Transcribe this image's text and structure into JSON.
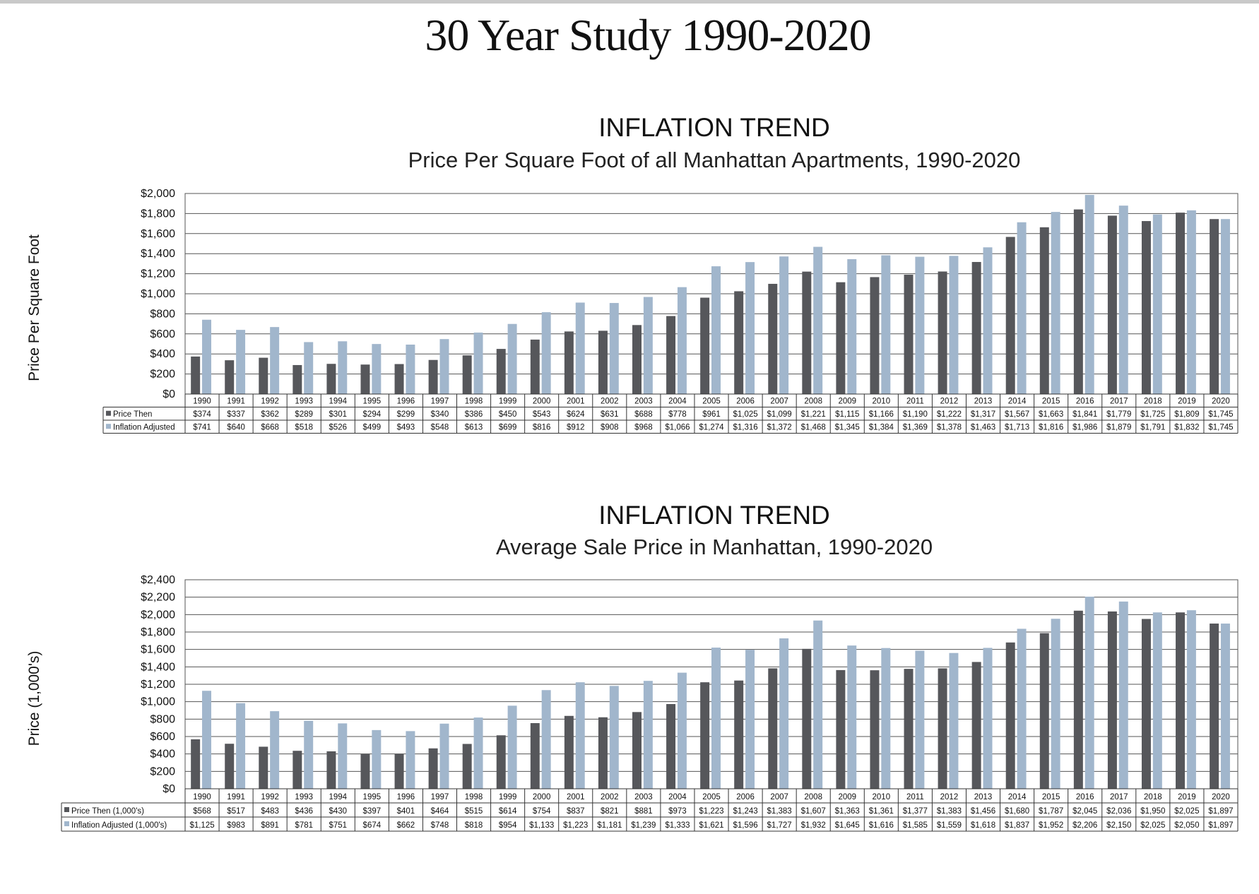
{
  "page": {
    "title": "30 Year Study 1990-2020"
  },
  "colors": {
    "price_then": "#56575b",
    "inflation_adjusted": "#a1b6cc",
    "grid": "#555555"
  },
  "chart_data": [
    {
      "type": "bar",
      "title": "INFLATION TREND",
      "subtitle": "Price Per Square Foot of all Manhattan Apartments, 1990-2020",
      "xlabel": "",
      "ylabel": "Price Per Square Foot",
      "ylim": [
        0,
        2000
      ],
      "yticks": [
        0,
        200,
        400,
        600,
        800,
        1000,
        1200,
        1400,
        1600,
        1800,
        2000
      ],
      "ytick_labels": [
        "$0",
        "$200",
        "$400",
        "$600",
        "$800",
        "$1,000",
        "$1,200",
        "$1,400",
        "$1,600",
        "$1,800",
        "$2,000"
      ],
      "grid": true,
      "legend": "data-table-left",
      "categories": [
        "1990",
        "1991",
        "1992",
        "1993",
        "1994",
        "1995",
        "1996",
        "1997",
        "1998",
        "1999",
        "2000",
        "2001",
        "2002",
        "2003",
        "2004",
        "2005",
        "2006",
        "2007",
        "2008",
        "2009",
        "2010",
        "2011",
        "2012",
        "2013",
        "2014",
        "2015",
        "2016",
        "2017",
        "2018",
        "2019",
        "2020"
      ],
      "series": [
        {
          "name": "Price Then",
          "values": [
            374,
            337,
            362,
            289,
            301,
            294,
            299,
            340,
            386,
            450,
            543,
            624,
            631,
            688,
            778,
            961,
            1025,
            1099,
            1221,
            1115,
            1166,
            1190,
            1222,
            1317,
            1567,
            1663,
            1841,
            1779,
            1725,
            1809,
            1745
          ],
          "labels": [
            "$374",
            "$337",
            "$362",
            "$289",
            "$301",
            "$294",
            "$299",
            "$340",
            "$386",
            "$450",
            "$543",
            "$624",
            "$631",
            "$688",
            "$778",
            "$961",
            "$1,025",
            "$1,099",
            "$1,221",
            "$1,115",
            "$1,166",
            "$1,190",
            "$1,222",
            "$1,317",
            "$1,567",
            "$1,663",
            "$1,841",
            "$1,779",
            "$1,725",
            "$1,809",
            "$1,745"
          ]
        },
        {
          "name": "Inflation Adjusted",
          "values": [
            741,
            640,
            668,
            518,
            526,
            499,
            493,
            548,
            613,
            699,
            816,
            912,
            908,
            968,
            1066,
            1274,
            1316,
            1372,
            1468,
            1345,
            1384,
            1369,
            1378,
            1463,
            1713,
            1816,
            1986,
            1879,
            1791,
            1832,
            1745
          ],
          "labels": [
            "$741",
            "$640",
            "$668",
            "$518",
            "$526",
            "$499",
            "$493",
            "$548",
            "$613",
            "$699",
            "$816",
            "$912",
            "$908",
            "$968",
            "$1,066",
            "$1,274",
            "$1,316",
            "$1,372",
            "$1,468",
            "$1,345",
            "$1,384",
            "$1,369",
            "$1,378",
            "$1,463",
            "$1,713",
            "$1,816",
            "$1,986",
            "$1,879",
            "$1,791",
            "$1,832",
            "$1,745"
          ]
        }
      ]
    },
    {
      "type": "bar",
      "title": "INFLATION TREND",
      "subtitle": "Average Sale Price in Manhattan, 1990-2020",
      "xlabel": "",
      "ylabel": "Price (1,000's)",
      "ylim": [
        0,
        2400
      ],
      "yticks": [
        0,
        200,
        400,
        600,
        800,
        1000,
        1200,
        1400,
        1600,
        1800,
        2000,
        2200,
        2400
      ],
      "ytick_labels": [
        "$0",
        "$200",
        "$400",
        "$600",
        "$800",
        "$1,000",
        "$1,200",
        "$1,400",
        "$1,600",
        "$1,800",
        "$2,000",
        "$2,200",
        "$2,400"
      ],
      "grid": true,
      "legend": "data-table-left",
      "categories": [
        "1990",
        "1991",
        "1992",
        "1993",
        "1994",
        "1995",
        "1996",
        "1997",
        "1998",
        "1999",
        "2000",
        "2001",
        "2002",
        "2003",
        "2004",
        "2005",
        "2006",
        "2007",
        "2008",
        "2009",
        "2010",
        "2011",
        "2012",
        "2013",
        "2014",
        "2015",
        "2016",
        "2017",
        "2018",
        "2019",
        "2020"
      ],
      "series": [
        {
          "name": "Price Then (1,000's)",
          "values": [
            568,
            517,
            483,
            436,
            430,
            397,
            401,
            464,
            515,
            614,
            754,
            837,
            821,
            881,
            973,
            1223,
            1243,
            1383,
            1607,
            1363,
            1361,
            1377,
            1383,
            1456,
            1680,
            1787,
            2045,
            2036,
            1950,
            2025,
            1897
          ],
          "labels": [
            "$568",
            "$517",
            "$483",
            "$436",
            "$430",
            "$397",
            "$401",
            "$464",
            "$515",
            "$614",
            "$754",
            "$837",
            "$821",
            "$881",
            "$973",
            "$1,223",
            "$1,243",
            "$1,383",
            "$1,607",
            "$1,363",
            "$1,361",
            "$1,377",
            "$1,383",
            "$1,456",
            "$1,680",
            "$1,787",
            "$2,045",
            "$2,036",
            "$1,950",
            "$2,025",
            "$1,897"
          ]
        },
        {
          "name": "Inflation Adjusted (1,000's)",
          "values": [
            1125,
            983,
            891,
            781,
            751,
            674,
            662,
            748,
            818,
            954,
            1133,
            1223,
            1181,
            1239,
            1333,
            1621,
            1596,
            1727,
            1932,
            1645,
            1616,
            1585,
            1559,
            1618,
            1837,
            1952,
            2206,
            2150,
            2025,
            2050,
            1897
          ],
          "labels": [
            "$1,125",
            "$983",
            "$891",
            "$781",
            "$751",
            "$674",
            "$662",
            "$748",
            "$818",
            "$954",
            "$1,133",
            "$1,223",
            "$1,181",
            "$1,239",
            "$1,333",
            "$1,621",
            "$1,596",
            "$1,727",
            "$1,932",
            "$1,645",
            "$1,616",
            "$1,585",
            "$1,559",
            "$1,618",
            "$1,837",
            "$1,952",
            "$2,206",
            "$2,150",
            "$2,025",
            "$2,050",
            "$1,897"
          ]
        }
      ]
    }
  ]
}
